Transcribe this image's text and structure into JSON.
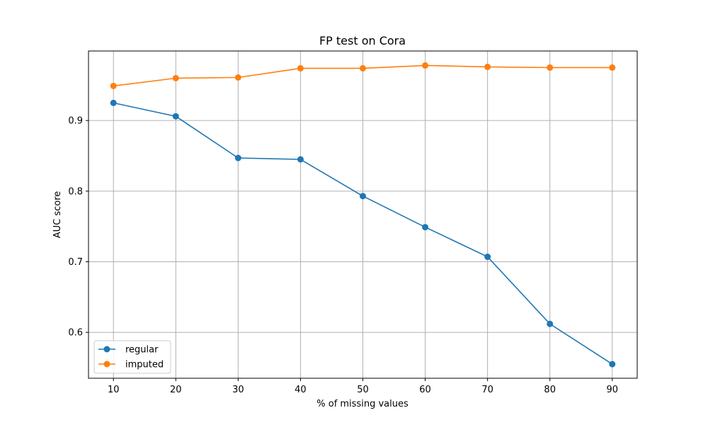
{
  "chart_data": {
    "type": "line",
    "title": "FP test on Cora",
    "xlabel": "% of missing values",
    "ylabel": "AUC score",
    "x": [
      10,
      20,
      30,
      40,
      50,
      60,
      70,
      80,
      90
    ],
    "xticks": [
      "10",
      "20",
      "30",
      "40",
      "50",
      "60",
      "70",
      "80",
      "90"
    ],
    "yticks": [
      "0.6",
      "0.7",
      "0.8",
      "0.9"
    ],
    "ytick_values": [
      0.6,
      0.7,
      0.8,
      0.9
    ],
    "xlim": [
      6,
      94
    ],
    "ylim": [
      0.535,
      0.9985
    ],
    "grid": true,
    "legend_position": "lower-left",
    "series": [
      {
        "name": "regular",
        "color": "#1f77b4",
        "values": [
          0.925,
          0.906,
          0.847,
          0.845,
          0.793,
          0.749,
          0.707,
          0.612,
          0.555
        ]
      },
      {
        "name": "imputed",
        "color": "#ff7f0e",
        "values": [
          0.949,
          0.96,
          0.961,
          0.974,
          0.974,
          0.978,
          0.976,
          0.975,
          0.975
        ]
      }
    ]
  }
}
